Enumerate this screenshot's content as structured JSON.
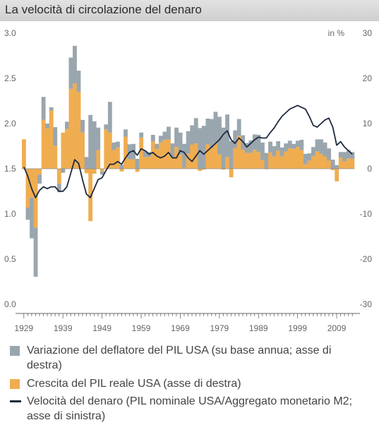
{
  "title": "La velocità di circolazione del denaro",
  "colors": {
    "deflator": "#9aa6ad",
    "gdp": "#f0ad50",
    "velocity": "#1e2a3e",
    "header": "#d6d6d6"
  },
  "chart_data": {
    "type": "bar",
    "title": "La velocità di circolazione del denaro",
    "left_axis": {
      "range": [
        0.0,
        3.0
      ],
      "ticks": [
        "0.0",
        "0.5",
        "1.0",
        "1.5",
        "2.0",
        "2.5",
        "3.0"
      ]
    },
    "right_axis": {
      "unit": "in %",
      "range": [
        -30,
        30
      ],
      "ticks": [
        "-30",
        "-20",
        "-10",
        "0",
        "10",
        "20",
        "30"
      ]
    },
    "x_ticks": [
      "1929",
      "1939",
      "1949",
      "1959",
      "1969",
      "1979",
      "1989",
      "1999",
      "2009"
    ],
    "years": [
      1929,
      1930,
      1931,
      1932,
      1933,
      1934,
      1935,
      1936,
      1937,
      1938,
      1939,
      1940,
      1941,
      1942,
      1943,
      1944,
      1945,
      1946,
      1947,
      1948,
      1949,
      1950,
      1951,
      1952,
      1953,
      1954,
      1955,
      1956,
      1957,
      1958,
      1959,
      1960,
      1961,
      1962,
      1963,
      1964,
      1965,
      1966,
      1967,
      1968,
      1969,
      1970,
      1971,
      1972,
      1973,
      1974,
      1975,
      1976,
      1977,
      1978,
      1979,
      1980,
      1981,
      1982,
      1983,
      1984,
      1985,
      1986,
      1987,
      1988,
      1989,
      1990,
      1991,
      1992,
      1993,
      1994,
      1995,
      1996,
      1997,
      1998,
      1999,
      2000,
      2001,
      2002,
      2003,
      2004,
      2005,
      2006,
      2007,
      2008,
      2009,
      2010,
      2011,
      2012,
      2013
    ],
    "series": [
      {
        "name": "Variazione del deflatore del PIL USA (su base annua; asse di destra)",
        "values": [
          0.0,
          -2.7,
          -9.0,
          -10.9,
          -2.0,
          5.1,
          1.1,
          0.7,
          4.1,
          -1.9,
          -0.9,
          1.6,
          6.9,
          8.3,
          4.7,
          2.8,
          2.6,
          11.9,
          10.5,
          5.0,
          -0.7,
          1.1,
          6.8,
          1.7,
          1.3,
          0.9,
          1.6,
          3.3,
          3.4,
          2.2,
          1.1,
          1.4,
          1.1,
          1.4,
          1.1,
          1.5,
          1.8,
          2.8,
          3.1,
          4.3,
          4.9,
          5.3,
          5.0,
          4.3,
          5.6,
          9.0,
          9.5,
          5.7,
          6.4,
          7.0,
          8.3,
          9.1,
          9.4,
          6.1,
          3.9,
          3.7,
          3.2,
          2.2,
          2.8,
          3.4,
          3.8,
          3.9,
          3.5,
          2.4,
          2.3,
          2.1,
          2.0,
          1.8,
          1.7,
          1.1,
          1.4,
          2.3,
          2.3,
          1.6,
          2.0,
          2.7,
          3.2,
          3.1,
          2.7,
          2.0,
          0.8,
          1.2,
          2.1,
          1.8,
          1.5
        ]
      },
      {
        "name": "Crescita del PIL reale USA (asse di destra)",
        "values": [
          6.5,
          -8.6,
          -6.4,
          -13.0,
          -1.3,
          10.8,
          8.9,
          12.9,
          5.1,
          -3.3,
          8.0,
          8.8,
          17.7,
          18.9,
          17.0,
          8.0,
          -1.0,
          -11.6,
          -1.1,
          4.1,
          -0.6,
          8.7,
          8.0,
          4.1,
          4.7,
          -0.6,
          7.1,
          2.1,
          2.1,
          -0.7,
          6.9,
          2.6,
          2.6,
          6.1,
          4.4,
          5.8,
          6.4,
          6.5,
          2.5,
          4.8,
          3.1,
          0.2,
          3.3,
          5.3,
          5.6,
          -0.5,
          -0.2,
          5.4,
          4.6,
          5.6,
          3.2,
          -0.2,
          2.6,
          -1.9,
          4.6,
          7.3,
          4.2,
          3.5,
          3.5,
          4.2,
          3.7,
          1.9,
          -0.1,
          3.6,
          2.7,
          4.0,
          2.7,
          3.8,
          4.5,
          4.4,
          4.8,
          4.1,
          1.0,
          1.8,
          2.8,
          3.8,
          3.3,
          2.7,
          1.8,
          -0.3,
          -2.8,
          2.5,
          1.6,
          2.3,
          2.2
        ]
      },
      {
        "name": "Velocità del denaro (PIL nominale USA/Aggregato monetario M2; asse di sinistra)",
        "values": [
          1.52,
          1.42,
          1.28,
          1.18,
          1.26,
          1.3,
          1.28,
          1.3,
          1.3,
          1.25,
          1.25,
          1.3,
          1.45,
          1.6,
          1.56,
          1.38,
          1.22,
          1.18,
          1.28,
          1.38,
          1.4,
          1.48,
          1.55,
          1.55,
          1.58,
          1.55,
          1.62,
          1.68,
          1.7,
          1.65,
          1.72,
          1.7,
          1.66,
          1.68,
          1.64,
          1.62,
          1.64,
          1.68,
          1.62,
          1.62,
          1.7,
          1.68,
          1.62,
          1.58,
          1.64,
          1.7,
          1.66,
          1.7,
          1.74,
          1.78,
          1.82,
          1.88,
          1.92,
          1.82,
          1.78,
          1.84,
          1.8,
          1.74,
          1.78,
          1.82,
          1.85,
          1.84,
          1.84,
          1.9,
          1.95,
          2.02,
          2.08,
          2.12,
          2.16,
          2.18,
          2.2,
          2.18,
          2.16,
          2.08,
          1.98,
          1.96,
          2.0,
          2.04,
          2.06,
          1.96,
          1.76,
          1.8,
          1.74,
          1.7,
          1.66
        ]
      }
    ],
    "legend": [
      "Variazione del deflatore del PIL USA (su base annua; asse di destra)",
      "Crescita del PIL reale USA (asse di destra)",
      "Velocità del denaro (PIL nominale USA/Aggregato monetario M2; asse di sinistra)"
    ]
  }
}
